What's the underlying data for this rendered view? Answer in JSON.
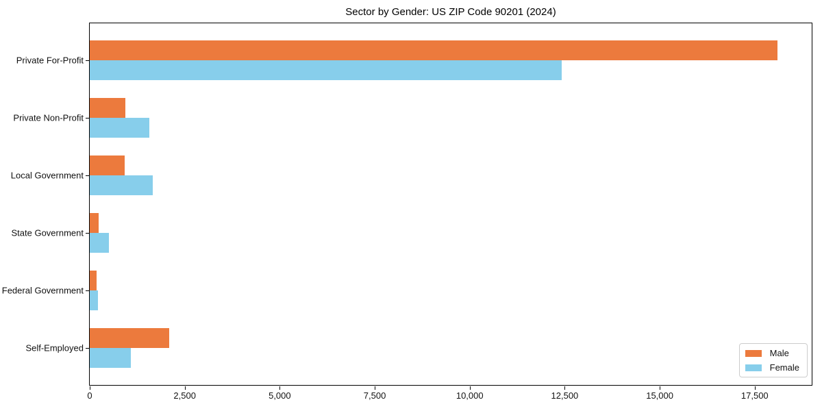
{
  "title": "Sector by Gender: US ZIP Code 90201 (2024)",
  "colors": {
    "male": "#ec7a3d",
    "female": "#87ceeb",
    "axis": "#000000",
    "legend_border": "#cccccc"
  },
  "legend": {
    "male_label": "Male",
    "female_label": "Female"
  },
  "chart_data": {
    "type": "bar",
    "orientation": "horizontal",
    "title": "Sector by Gender: US ZIP Code 90201 (2024)",
    "categories": [
      "Private For-Profit",
      "Private Non-Profit",
      "Local Government",
      "State Government",
      "Federal Government",
      "Self-Employed"
    ],
    "series": [
      {
        "name": "Male",
        "color": "#ec7a3d",
        "values": [
          18100,
          940,
          920,
          230,
          175,
          2100
        ]
      },
      {
        "name": "Female",
        "color": "#87ceeb",
        "values": [
          12420,
          1560,
          1650,
          500,
          220,
          1080
        ]
      }
    ],
    "xlabel": "",
    "ylabel": "",
    "xlim": [
      0,
      19000
    ],
    "xticks": [
      0,
      2500,
      5000,
      7500,
      10000,
      12500,
      15000,
      17500
    ],
    "xtick_labels": [
      "0",
      "2,500",
      "5,000",
      "7,500",
      "10,000",
      "12,500",
      "15,000",
      "17,500"
    ],
    "grid": false,
    "legend_position": "lower right",
    "category_order": "first at top"
  }
}
